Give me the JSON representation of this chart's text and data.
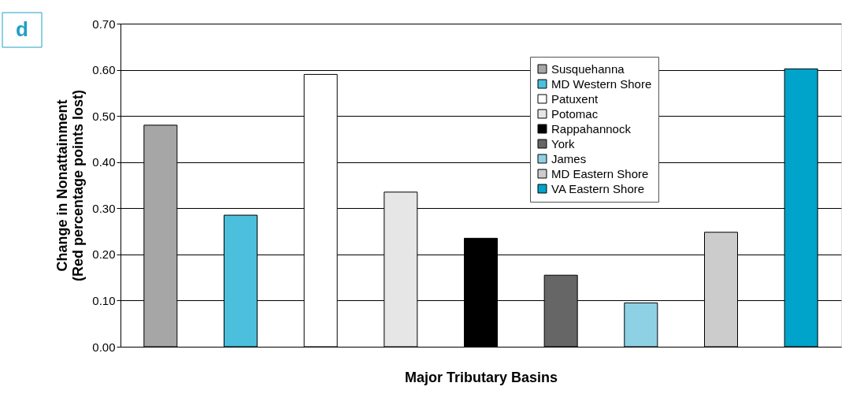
{
  "chart_data": {
    "type": "bar",
    "xlabel": "Major Tributary Basins",
    "ylabel": "Change in Nonattainment\n(Red percentage points lost)",
    "annotations": [
      "d"
    ],
    "categories": [
      null,
      null,
      null,
      null,
      null,
      null,
      null,
      null,
      null
    ],
    "series": [
      {
        "name": "Susquehanna",
        "color": "#a6a6a6",
        "values": [
          0.48,
          null,
          null,
          null,
          null,
          null,
          null,
          null,
          null
        ]
      },
      {
        "name": "MD Western Shore",
        "color": "#4bbfdc",
        "values": [
          null,
          0.285,
          null,
          null,
          null,
          null,
          null,
          null,
          null
        ]
      },
      {
        "name": "Patuxent",
        "color": "#ffffff",
        "values": [
          null,
          null,
          0.59,
          null,
          null,
          null,
          null,
          null,
          null
        ]
      },
      {
        "name": "Potomac",
        "color": "#e6e6e6",
        "values": [
          null,
          null,
          null,
          0.335,
          null,
          null,
          null,
          null,
          null
        ]
      },
      {
        "name": "Rappahannock",
        "color": "#000000",
        "values": [
          null,
          null,
          null,
          null,
          0.235,
          null,
          null,
          null,
          null
        ]
      },
      {
        "name": "York",
        "color": "#666666",
        "values": [
          null,
          null,
          null,
          null,
          null,
          0.155,
          null,
          null,
          null
        ]
      },
      {
        "name": "James",
        "color": "#8ed1e5",
        "values": [
          null,
          null,
          null,
          null,
          null,
          null,
          0.095,
          null,
          null
        ]
      },
      {
        "name": "MD Eastern Shore",
        "color": "#cccccc",
        "values": [
          null,
          null,
          null,
          null,
          null,
          null,
          null,
          0.248,
          null
        ]
      },
      {
        "name": "VA Eastern Shore",
        "color": "#00a3c9",
        "values": [
          null,
          null,
          null,
          null,
          null,
          null,
          null,
          null,
          0.602
        ]
      }
    ],
    "ylim": [
      0,
      0.7
    ],
    "yticks": [
      {
        "value": 0,
        "label": "0.00"
      },
      {
        "value": 0.1,
        "label": "0.10"
      },
      {
        "value": 0.2,
        "label": "0.20"
      },
      {
        "value": 0.3,
        "label": "0.30"
      },
      {
        "value": 0.4,
        "label": "0.40"
      },
      {
        "value": 0.5,
        "label": "0.50"
      },
      {
        "value": 0.6,
        "label": "0.60"
      },
      {
        "value": 0.7,
        "label": "0.70"
      }
    ],
    "grid": "y",
    "legend": "top right"
  }
}
